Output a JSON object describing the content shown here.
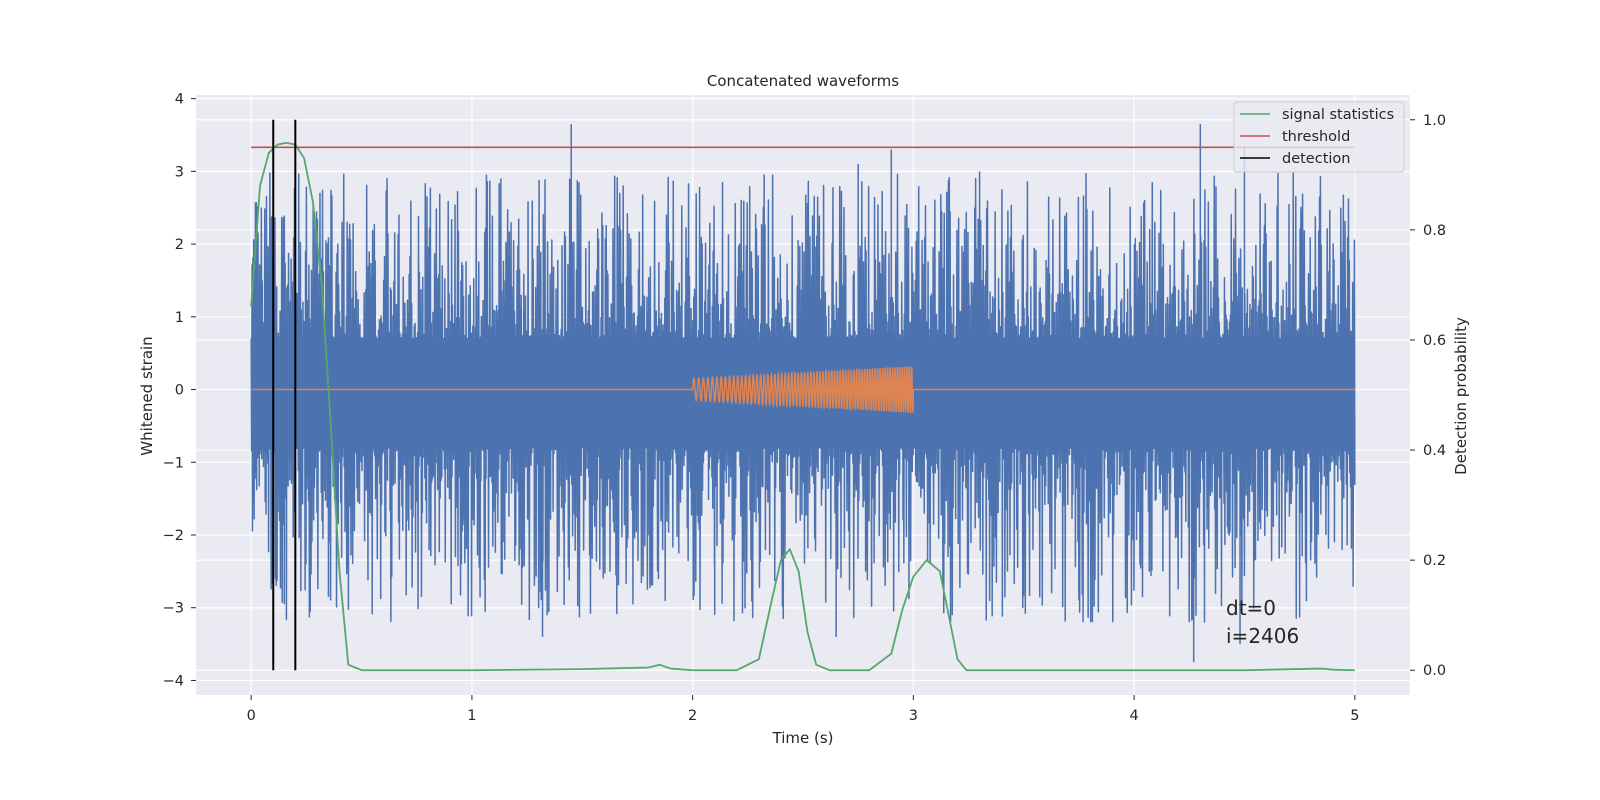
{
  "chart_data": {
    "type": "line",
    "title": "Concatenated waveforms",
    "xlabel": "Time (s)",
    "ylabel": "Whitened strain",
    "y2label": "Detection probability",
    "xlim": [
      -0.25,
      5.25
    ],
    "ylim": [
      -4.2,
      4.05
    ],
    "y2lim": [
      -0.045,
      1.045
    ],
    "xticks": [
      "0",
      "1",
      "2",
      "3",
      "4",
      "5"
    ],
    "yticks": [
      "−4",
      "−3",
      "−2",
      "−1",
      "0",
      "1",
      "2",
      "3",
      "4"
    ],
    "y2ticks": [
      "0.0",
      "0.2",
      "0.4",
      "0.6",
      "0.8",
      "1.0"
    ],
    "grid": true,
    "legend_position": "top-right",
    "legend": [
      "signal statistics",
      "threshold",
      "detection"
    ],
    "colors": {
      "strain": "#4c72b0",
      "injection": "#dd8452",
      "signal_statistics": "#55a868",
      "threshold": "#c44e52",
      "detection": "#000000",
      "axes_bg": "#eaeaf2",
      "grid": "#ffffff"
    },
    "series": [
      {
        "name": "",
        "axis": "left",
        "description_kind": "whitened strain noise",
        "x_range": [
          0,
          5
        ],
        "core_band": [
          -0.8,
          0.7
        ],
        "peaks": [
          {
            "x": 1.45,
            "y": 3.65
          },
          {
            "x": 4.3,
            "y": 3.65
          },
          {
            "x": 4.5,
            "y": 3.35
          },
          {
            "x": 2.9,
            "y": 3.3
          },
          {
            "x": 0.2,
            "y": 2.95
          },
          {
            "x": 3.3,
            "y": 3.0
          },
          {
            "x": 2.75,
            "y": 3.1
          },
          {
            "x": 4.27,
            "y": -3.75
          },
          {
            "x": 1.32,
            "y": -3.4
          },
          {
            "x": 2.65,
            "y": -3.4
          },
          {
            "x": 4.48,
            "y": -3.5
          },
          {
            "x": 0.35,
            "y": -2.85
          },
          {
            "x": 0.15,
            "y": -2.95
          },
          {
            "x": 2.1,
            "y": -3.1
          },
          {
            "x": 3.75,
            "y": -2.9
          }
        ]
      },
      {
        "name": "",
        "axis": "left",
        "description_kind": "injected chirp",
        "x_range": [
          0,
          5
        ],
        "chirp_start": 2.0,
        "chirp_end": 3.0,
        "amplitude_start": 0.15,
        "amplitude_end": 0.32
      },
      {
        "name": "signal statistics",
        "axis": "right",
        "x": [
          0.0,
          0.04,
          0.08,
          0.12,
          0.16,
          0.2,
          0.24,
          0.28,
          0.32,
          0.36,
          0.4,
          0.44,
          0.5,
          1.0,
          1.5,
          1.8,
          1.85,
          1.9,
          2.0,
          2.2,
          2.3,
          2.36,
          2.4,
          2.44,
          2.48,
          2.52,
          2.56,
          2.62,
          2.8,
          2.9,
          2.95,
          3.0,
          3.06,
          3.12,
          3.16,
          3.2,
          3.24,
          3.3,
          4.0,
          4.5,
          4.85,
          4.9,
          5.0
        ],
        "values": [
          0.66,
          0.88,
          0.94,
          0.955,
          0.958,
          0.955,
          0.93,
          0.85,
          0.7,
          0.45,
          0.18,
          0.01,
          0.0,
          0.0,
          0.002,
          0.005,
          0.01,
          0.003,
          0.0,
          0.0,
          0.02,
          0.13,
          0.2,
          0.22,
          0.18,
          0.07,
          0.01,
          0.0,
          0.0,
          0.03,
          0.11,
          0.17,
          0.2,
          0.18,
          0.1,
          0.02,
          0.0,
          0.0,
          0.0,
          0.0,
          0.003,
          0.001,
          0.0
        ]
      },
      {
        "name": "threshold",
        "axis": "right",
        "x": [
          0,
          5
        ],
        "values": [
          0.95,
          0.95
        ]
      },
      {
        "name": "detection",
        "axis": "right",
        "x": [
          0.1,
          0.2
        ],
        "values": [
          0.0,
          0.0
        ]
      }
    ],
    "annotations": [
      "dt=0",
      "i=2406"
    ]
  }
}
